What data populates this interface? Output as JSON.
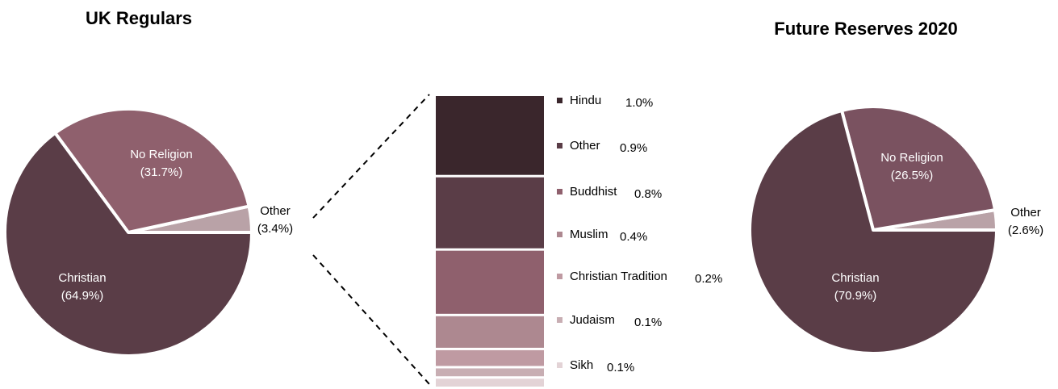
{
  "chart_data": [
    {
      "type": "pie",
      "title": "UK Regulars",
      "categories": [
        "Christian",
        "No Religion",
        "Other"
      ],
      "values": [
        64.9,
        31.7,
        3.4
      ],
      "labels": [
        "Christian\n(64.9%)",
        "No Religion\n(31.7%)",
        "Other\n(3.4%)"
      ],
      "colors": [
        "#5a3d47",
        "#8f606d",
        "#b9a2a7"
      ]
    },
    {
      "type": "bar",
      "stacked": true,
      "title": "",
      "categories": [
        "Hindu",
        "Other",
        "Buddhist",
        "Muslim",
        "Christian Tradition",
        "Judaism",
        "Sikh"
      ],
      "values": [
        1.0,
        0.9,
        0.8,
        0.4,
        0.2,
        0.1,
        0.1
      ],
      "value_labels": [
        "1.0%",
        "0.9%",
        "0.8%",
        "0.4%",
        "0.2%",
        "0.1%",
        "0.1%"
      ],
      "colors": [
        "#3a262c",
        "#5a3d47",
        "#8f606d",
        "#ad8890",
        "#bf9aa2",
        "#c8aeb3",
        "#e3d3d6"
      ],
      "legend_position": "right"
    },
    {
      "type": "pie",
      "title": "Future Reserves 2020",
      "categories": [
        "Christian",
        "No Religion",
        "Other"
      ],
      "values": [
        70.9,
        26.5,
        2.6
      ],
      "labels": [
        "Christian\n(70.9%)",
        "No Religion\n(26.5%)",
        "Other\n(2.6%)"
      ],
      "colors": [
        "#5a3d47",
        "#7a5260",
        "#b9a2a7"
      ]
    }
  ]
}
